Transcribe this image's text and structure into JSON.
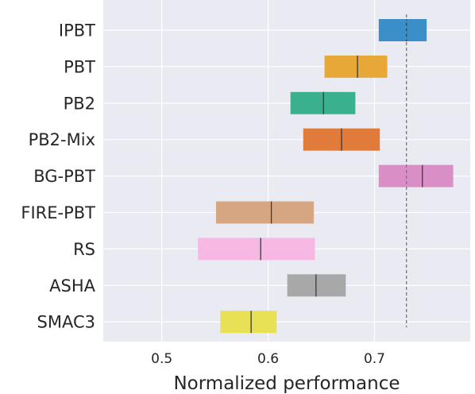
{
  "chart_data": {
    "type": "range-bar",
    "xlabel": "Normalized performance",
    "ylabel": "",
    "title": "",
    "xlim": [
      0.445,
      0.79
    ],
    "xticks": [
      0.5,
      0.6,
      0.7
    ],
    "xtick_labels": [
      "0.5",
      "0.6",
      "0.7"
    ],
    "grid": true,
    "reference_line": 0.73,
    "categories": [
      "IPBT",
      "PBT",
      "PB2",
      "PB2-Mix",
      "BG-PBT",
      "FIRE-PBT",
      "RS",
      "ASHA",
      "SMAC3"
    ],
    "series": [
      {
        "low": 0.704,
        "high": 0.749,
        "median": 0.73,
        "color": "#3a8fc9"
      },
      {
        "low": 0.653,
        "high": 0.712,
        "median": 0.684,
        "color": "#e8a838"
      },
      {
        "low": 0.621,
        "high": 0.682,
        "median": 0.652,
        "color": "#3bb08f"
      },
      {
        "low": 0.633,
        "high": 0.705,
        "median": 0.669,
        "color": "#e07b39"
      },
      {
        "low": 0.704,
        "high": 0.774,
        "median": 0.745,
        "color": "#d98fc6"
      },
      {
        "low": 0.551,
        "high": 0.643,
        "median": 0.603,
        "color": "#d6a682"
      },
      {
        "low": 0.534,
        "high": 0.644,
        "median": 0.593,
        "color": "#f7b8e3"
      },
      {
        "low": 0.618,
        "high": 0.673,
        "median": 0.645,
        "color": "#a8a8a8"
      },
      {
        "low": 0.555,
        "high": 0.608,
        "median": 0.584,
        "color": "#e8e055"
      }
    ]
  }
}
